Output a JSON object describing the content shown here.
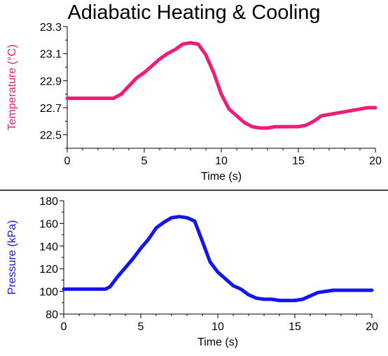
{
  "title": "Adiabatic Heating & Cooling",
  "colors": {
    "temperature": "#ee1e78",
    "pressure": "#1414f0",
    "axis": "#000000",
    "divider": "#000000"
  },
  "chart_data": [
    {
      "type": "line",
      "xlabel": "Time (s)",
      "ylabel": "Temperature (°C)",
      "xlim": [
        0,
        20
      ],
      "ylim": [
        22.4,
        23.3
      ],
      "xticks": [
        0,
        5,
        10,
        15,
        20
      ],
      "yticks": [
        "22.5",
        "22.7",
        "22.9",
        "23.1",
        "23.3"
      ],
      "grid": false,
      "series": [
        {
          "x": [
            0,
            1,
            2,
            3,
            3.5,
            4,
            4.5,
            5,
            5.5,
            6,
            6.5,
            7,
            7.5,
            8,
            8.5,
            9,
            9.5,
            10,
            10.5,
            11,
            11.5,
            12,
            12.5,
            13,
            13.5,
            14,
            14.5,
            15,
            15.5,
            16,
            16.5,
            17,
            17.5,
            18,
            18.5,
            19,
            19.5,
            20
          ],
          "y": [
            22.77,
            22.77,
            22.77,
            22.77,
            22.8,
            22.86,
            22.92,
            22.96,
            23.01,
            23.06,
            23.1,
            23.13,
            23.17,
            23.18,
            23.17,
            23.09,
            22.96,
            22.8,
            22.69,
            22.64,
            22.59,
            22.56,
            22.55,
            22.55,
            22.56,
            22.56,
            22.56,
            22.56,
            22.57,
            22.6,
            22.64,
            22.65,
            22.66,
            22.67,
            22.68,
            22.69,
            22.7,
            22.7
          ]
        }
      ]
    },
    {
      "type": "line",
      "xlabel": "Time (s)",
      "ylabel": "Pressure (kPa)",
      "xlim": [
        0,
        20
      ],
      "ylim": [
        80,
        180
      ],
      "xticks": [
        0,
        5,
        10,
        15,
        20
      ],
      "yticks": [
        "80",
        "100",
        "120",
        "140",
        "160",
        "180"
      ],
      "grid": false,
      "series": [
        {
          "x": [
            0,
            1,
            2,
            2.7,
            3,
            3.5,
            4,
            4.5,
            5,
            5.5,
            6,
            6.5,
            7,
            7.5,
            8,
            8.5,
            9,
            9.5,
            10,
            10.5,
            11,
            11.5,
            12,
            12.5,
            13,
            13.5,
            14,
            14.5,
            15,
            15.5,
            16,
            16.5,
            17,
            17.5,
            18,
            19,
            20
          ],
          "y": [
            102,
            102,
            102,
            102,
            104,
            113,
            121,
            129,
            138,
            146,
            156,
            161,
            165,
            166,
            165,
            162,
            144,
            126,
            117,
            111,
            105,
            102,
            97,
            94,
            93,
            93,
            92,
            92,
            92,
            93,
            96,
            99,
            100,
            101,
            101,
            101,
            101
          ]
        }
      ]
    }
  ]
}
